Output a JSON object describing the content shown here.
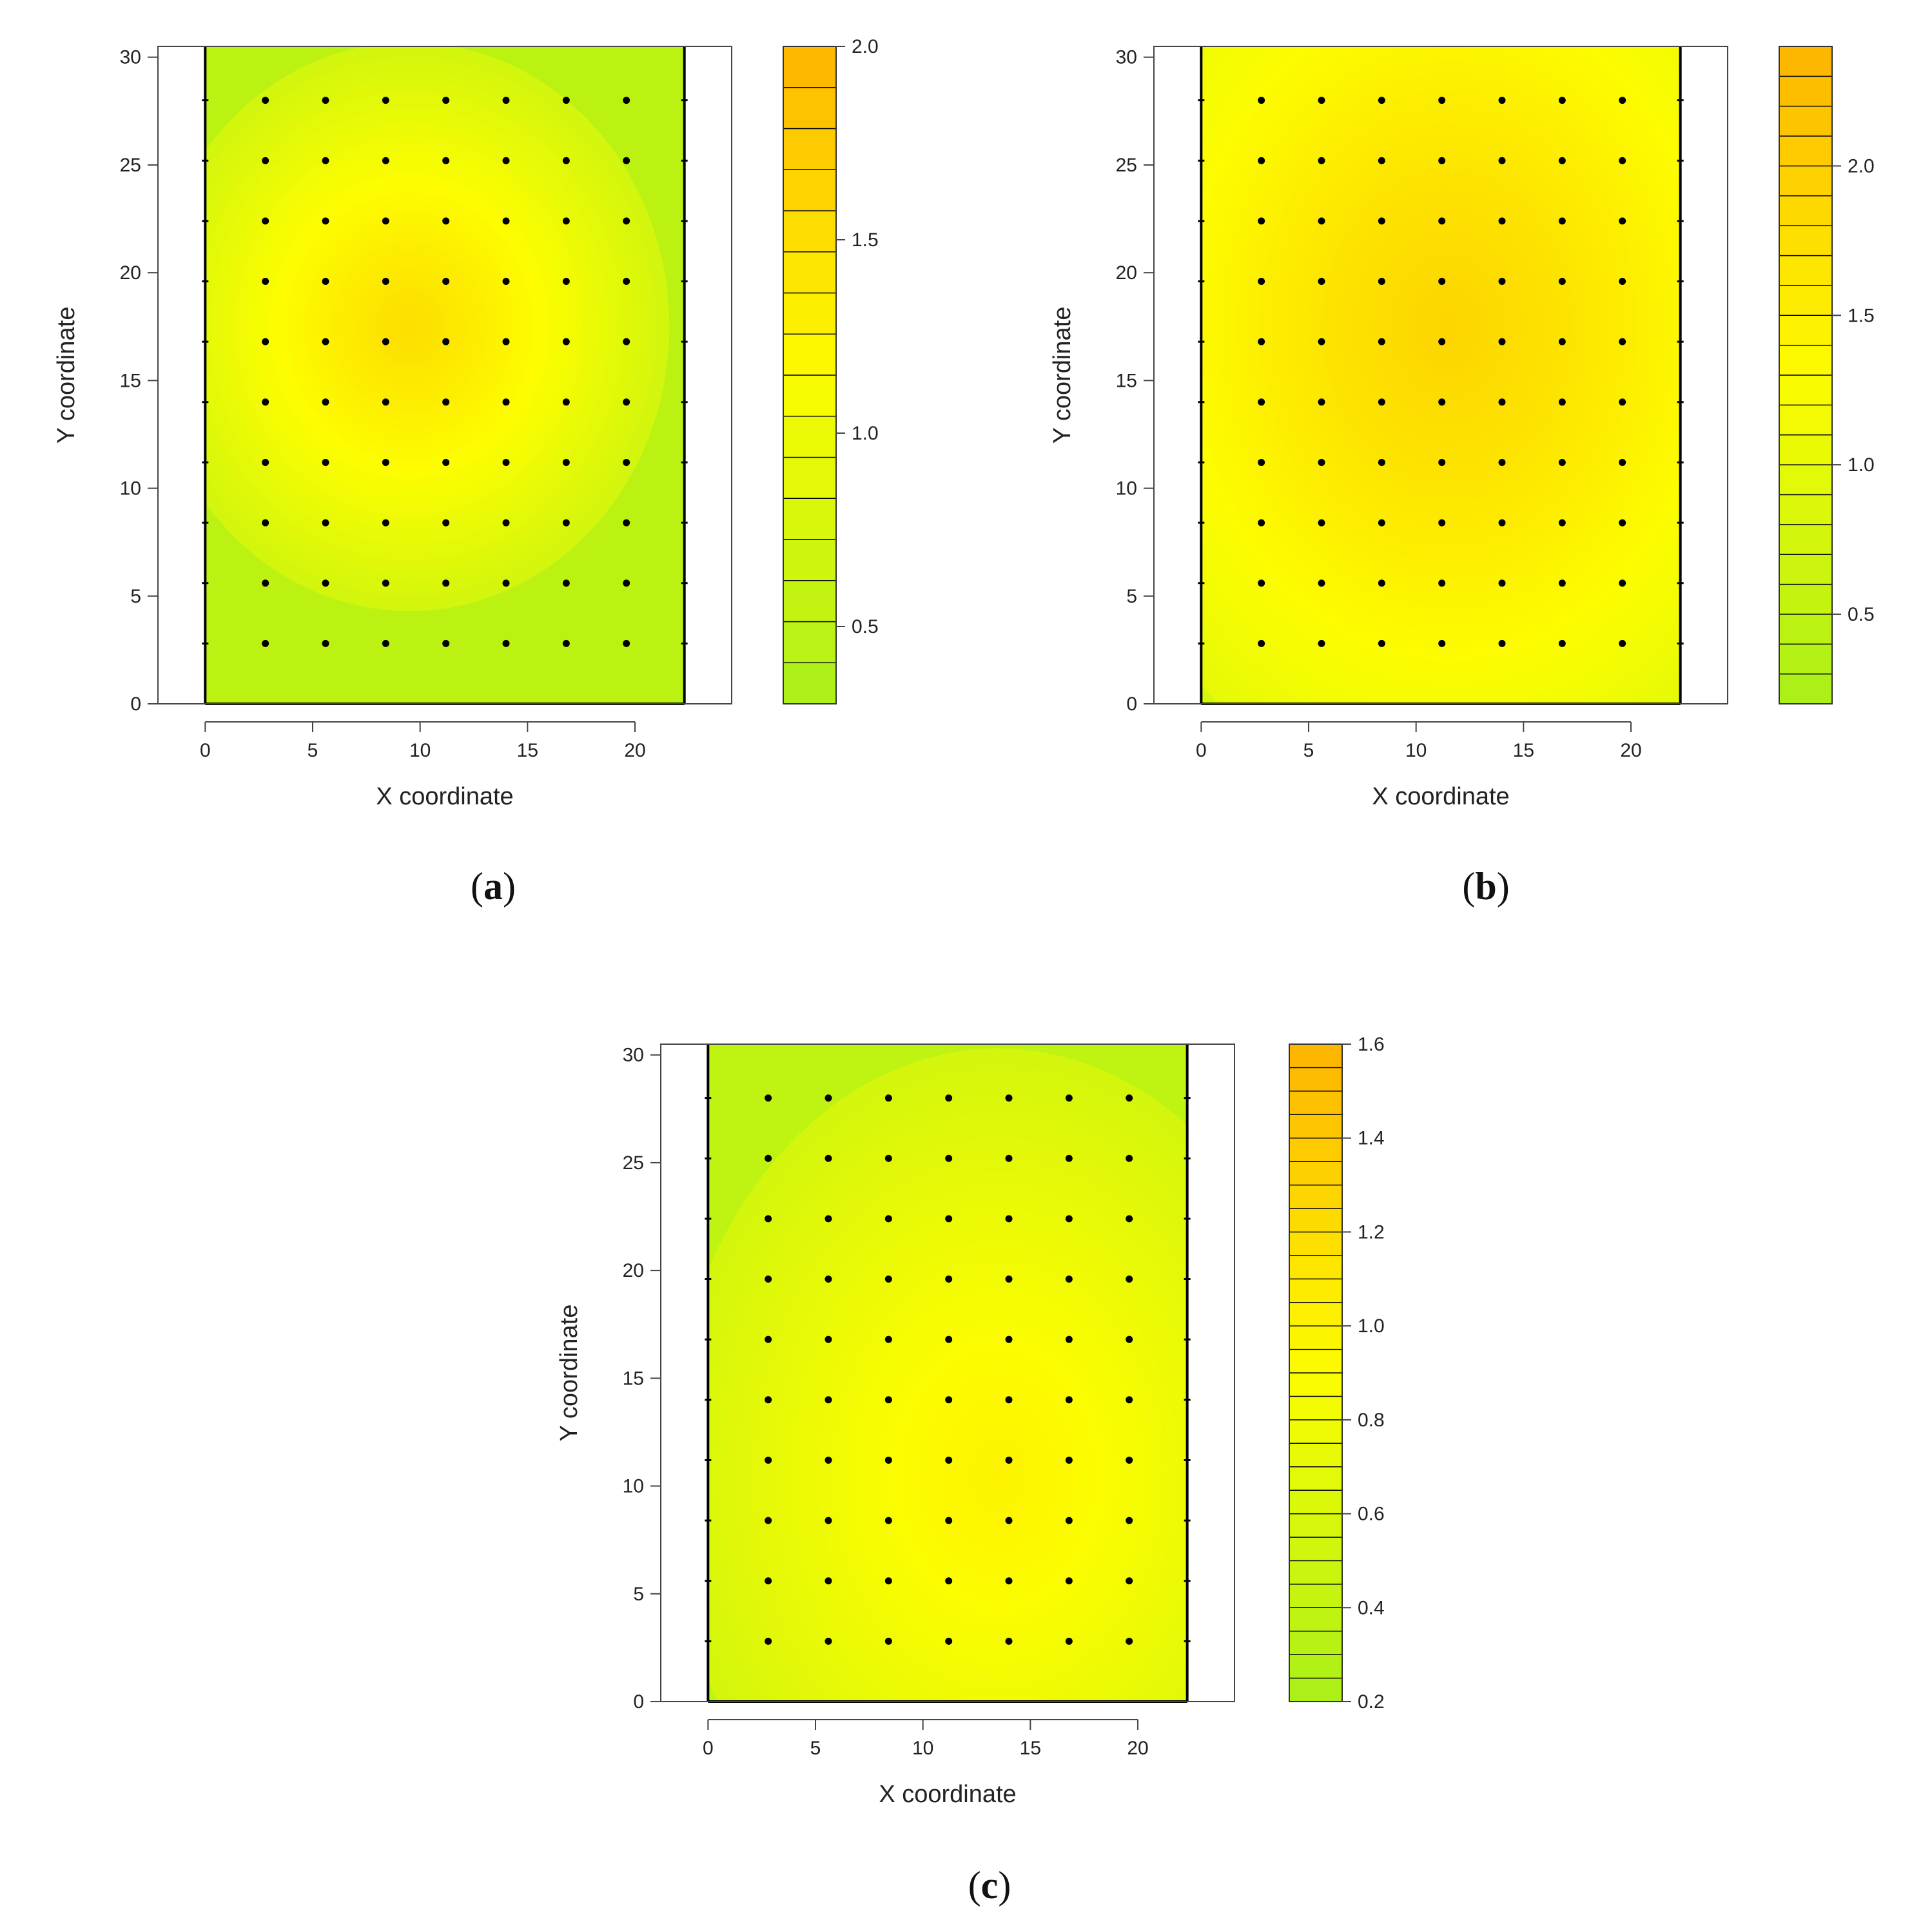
{
  "figure": {
    "panels": [
      "(a)",
      "(b)",
      "(c)"
    ]
  },
  "chart_data": [
    {
      "type": "heatmap",
      "panel_label": "(a)",
      "xlabel": "X coordinate",
      "ylabel": "Y coordinate",
      "xlim": [
        -2.2,
        24.5
      ],
      "ylim": [
        0,
        30.5
      ],
      "x_ticks": [
        0,
        5,
        10,
        15,
        20
      ],
      "y_ticks": [
        0,
        5,
        10,
        15,
        20,
        25,
        30
      ],
      "field_x_range": [
        0,
        22.3
      ],
      "field_y_range": [
        0,
        30.5
      ],
      "grid_points_x": [
        2.8,
        5.6,
        8.4,
        11.2,
        14,
        16.8,
        19.6
      ],
      "grid_points_y": [
        2.8,
        5.6,
        8.4,
        11.2,
        14,
        16.8,
        19.6,
        22.4,
        25.2,
        28
      ],
      "peak": {
        "x": 9.5,
        "y": 17.5,
        "value": 1.5
      },
      "background_value": 0.7,
      "spread": [
        5.5,
        6
      ],
      "colorbar": {
        "min": 0.3,
        "max": 2.0,
        "levels": 16,
        "ticks": [
          0.5,
          1.0,
          1.5,
          2.0
        ],
        "tick_labels": [
          "0.5",
          "1.0",
          "1.5",
          "2.0"
        ]
      },
      "colors": {
        "low": "#a9ef18",
        "mid": "#fdfd00",
        "high": "#fdb400"
      }
    },
    {
      "type": "heatmap",
      "panel_label": "(b)",
      "xlabel": "X coordinate",
      "ylabel": "Y coordinate",
      "xlim": [
        -2.2,
        24.5
      ],
      "ylim": [
        0,
        30.5
      ],
      "x_ticks": [
        0,
        5,
        10,
        15,
        20
      ],
      "y_ticks": [
        0,
        5,
        10,
        15,
        20,
        25,
        30
      ],
      "field_x_range": [
        0,
        22.3
      ],
      "field_y_range": [
        0,
        30.5
      ],
      "grid_points_x": [
        2.8,
        5.6,
        8.4,
        11.2,
        14,
        16.8,
        19.6
      ],
      "grid_points_y": [
        2.8,
        5.6,
        8.4,
        11.2,
        14,
        16.8,
        19.6,
        22.4,
        25.2,
        28
      ],
      "peak": {
        "x": 11.5,
        "y": 17.5,
        "value": 1.9
      },
      "background_value": 1.0,
      "spread": [
        8,
        10
      ],
      "colorbar": {
        "min": 0.2,
        "max": 2.4,
        "levels": 22,
        "ticks": [
          0.5,
          1.0,
          1.5,
          2.0
        ],
        "tick_labels": [
          "0.5",
          "1.0",
          "1.5",
          "2.0"
        ]
      },
      "colors": {
        "low": "#a9ef18",
        "mid": "#fdfd00",
        "high": "#fdb400"
      }
    },
    {
      "type": "heatmap",
      "panel_label": "(c)",
      "xlabel": "X coordinate",
      "ylabel": "Y coordinate",
      "xlim": [
        -2.2,
        24.5
      ],
      "ylim": [
        0,
        30.5
      ],
      "x_ticks": [
        0,
        5,
        10,
        15,
        20
      ],
      "y_ticks": [
        0,
        5,
        10,
        15,
        20,
        25,
        30
      ],
      "field_x_range": [
        0,
        22.3
      ],
      "field_y_range": [
        0,
        30.5
      ],
      "grid_points_x": [
        2.8,
        5.6,
        8.4,
        11.2,
        14,
        16.8,
        19.6
      ],
      "grid_points_y": [
        2.8,
        5.6,
        8.4,
        11.2,
        14,
        16.8,
        19.6,
        22.4,
        25.2,
        28
      ],
      "peak": {
        "x": 13.5,
        "y": 10.5,
        "value": 1.0
      },
      "background_value": 0.55,
      "spread": [
        7,
        9
      ],
      "colorbar": {
        "min": 0.2,
        "max": 1.6,
        "levels": 28,
        "ticks": [
          0.2,
          0.4,
          0.6,
          0.8,
          1.0,
          1.2,
          1.4,
          1.6
        ],
        "tick_labels": [
          "0.2",
          "0.4",
          "0.6",
          "0.8",
          "1.0",
          "1.2",
          "1.4",
          "1.6"
        ]
      },
      "colors": {
        "low": "#a9ef18",
        "mid": "#fdfd00",
        "high": "#fdb400"
      }
    }
  ]
}
